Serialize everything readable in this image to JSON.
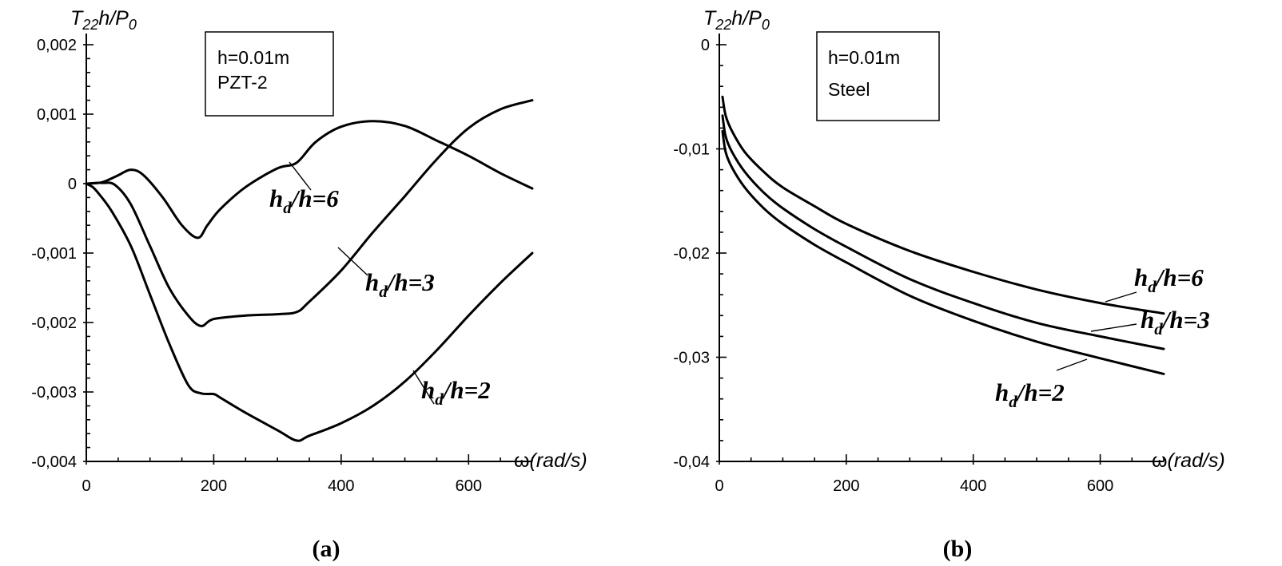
{
  "chart_data": [
    {
      "type": "line",
      "panel_label": "(a)",
      "ylabel": "T22h/P0",
      "ylabel_parts": {
        "base": "T",
        "sub1": "22",
        "mid": "h/P",
        "sub2": "0"
      },
      "xlabel": "ω(rad/s)",
      "xlabel_parts": {
        "symbol": "ω",
        "unit": "(rad/s)"
      },
      "xlim": [
        0,
        700
      ],
      "ylim": [
        -0.004,
        0.002
      ],
      "xticks": [
        0,
        200,
        400,
        600
      ],
      "xtick_labels": [
        "0",
        "200",
        "400",
        "600"
      ],
      "yticks": [
        0.002,
        0.001,
        0,
        -0.001,
        -0.002,
        -0.003,
        -0.004
      ],
      "ytick_labels": [
        "0,002",
        "0,001",
        "0",
        "-0,001",
        "-0,002",
        "-0,003",
        "-0,004"
      ],
      "annotation_lines": [
        "h=0.01m",
        "PZT-2"
      ],
      "grid": false,
      "series": [
        {
          "name": "hd/h=6",
          "label_parts": {
            "h": "h",
            "sub": "d",
            "rest": "/h=6"
          },
          "x": [
            0,
            25,
            50,
            70,
            90,
            120,
            150,
            175,
            190,
            210,
            250,
            300,
            330,
            360,
            400,
            450,
            500,
            550,
            600,
            650,
            700
          ],
          "y": [
            0,
            2e-05,
            0.00012,
            0.0002,
            0.00012,
            -0.0002,
            -0.0006,
            -0.00078,
            -0.0006,
            -0.00037,
            -5e-05,
            0.00022,
            0.0003,
            0.0006,
            0.00082,
            0.0009,
            0.00083,
            0.00062,
            0.0004,
            0.00015,
            -7e-05
          ]
        },
        {
          "name": "hd/h=3",
          "label_parts": {
            "h": "h",
            "sub": "d",
            "rest": "/h=3"
          },
          "x": [
            0,
            25,
            45,
            70,
            100,
            130,
            160,
            180,
            200,
            250,
            300,
            330,
            350,
            400,
            450,
            500,
            550,
            600,
            650,
            700
          ],
          "y": [
            0,
            1e-05,
            -2e-05,
            -0.0003,
            -0.0009,
            -0.0015,
            -0.0019,
            -0.00205,
            -0.00195,
            -0.0019,
            -0.00188,
            -0.00185,
            -0.0017,
            -0.00125,
            -0.0007,
            -0.00018,
            0.00035,
            0.0008,
            0.00107,
            0.0012
          ]
        },
        {
          "name": "hd/h=2",
          "label_parts": {
            "h": "h",
            "sub": "d",
            "rest": "/h=2"
          },
          "x": [
            0,
            10,
            20,
            40,
            70,
            100,
            130,
            160,
            180,
            200,
            210,
            250,
            300,
            330,
            350,
            400,
            450,
            500,
            550,
            600,
            650,
            700
          ],
          "y": [
            0,
            -5e-05,
            -0.00015,
            -0.0004,
            -0.0009,
            -0.0016,
            -0.0023,
            -0.0029,
            -0.00302,
            -0.00303,
            -0.00308,
            -0.0033,
            -0.00355,
            -0.0037,
            -0.00363,
            -0.00345,
            -0.0032,
            -0.00285,
            -0.0024,
            -0.0019,
            -0.00143,
            -0.001
          ]
        }
      ]
    },
    {
      "type": "line",
      "panel_label": "(b)",
      "ylabel": "T22h/P0",
      "ylabel_parts": {
        "base": "T",
        "sub1": "22",
        "mid": "h/P",
        "sub2": "0"
      },
      "xlabel": "ω(rad/s)",
      "xlabel_parts": {
        "symbol": "ω",
        "unit": "(rad/s)"
      },
      "xlim": [
        0,
        700
      ],
      "ylim": [
        -0.04,
        0
      ],
      "xticks": [
        0,
        200,
        400,
        600
      ],
      "xtick_labels": [
        "0",
        "200",
        "400",
        "600"
      ],
      "yticks": [
        0,
        -0.01,
        -0.02,
        -0.03,
        -0.04
      ],
      "ytick_labels": [
        "0",
        "-0,01",
        "-0,02",
        "-0,03",
        "-0,04"
      ],
      "annotation_lines": [
        "h=0.01m",
        "Steel"
      ],
      "grid": false,
      "series": [
        {
          "name": "hd/h=6",
          "label_parts": {
            "h": "h",
            "sub": "d",
            "rest": "/h=6"
          },
          "x": [
            5,
            10,
            20,
            40,
            70,
            100,
            150,
            200,
            300,
            400,
            500,
            600,
            700
          ],
          "y": [
            -0.005,
            -0.0068,
            -0.0083,
            -0.0103,
            -0.0122,
            -0.0137,
            -0.0155,
            -0.0172,
            -0.0198,
            -0.0218,
            -0.0235,
            -0.0248,
            -0.0258
          ]
        },
        {
          "name": "hd/h=3",
          "label_parts": {
            "h": "h",
            "sub": "d",
            "rest": "/h=3"
          },
          "x": [
            5,
            10,
            20,
            40,
            70,
            100,
            150,
            200,
            300,
            400,
            500,
            600,
            700
          ],
          "y": [
            -0.0068,
            -0.0088,
            -0.0103,
            -0.0122,
            -0.0142,
            -0.0157,
            -0.0177,
            -0.0194,
            -0.0225,
            -0.0248,
            -0.0267,
            -0.028,
            -0.0292
          ]
        },
        {
          "name": "hd/h=2",
          "label_parts": {
            "h": "h",
            "sub": "d",
            "rest": "/h=2"
          },
          "x": [
            5,
            10,
            20,
            40,
            70,
            100,
            150,
            200,
            300,
            400,
            500,
            600,
            700
          ],
          "y": [
            -0.0083,
            -0.0103,
            -0.0118,
            -0.0137,
            -0.0157,
            -0.0172,
            -0.0192,
            -0.0209,
            -0.0241,
            -0.0265,
            -0.0285,
            -0.0301,
            -0.0316
          ]
        }
      ]
    }
  ]
}
